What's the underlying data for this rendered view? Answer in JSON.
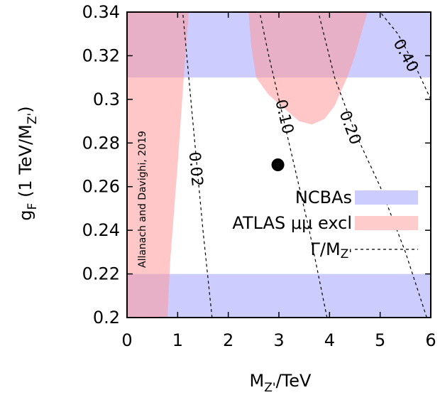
{
  "chart_data": {
    "type": "contour",
    "xlabel": "M",
    "xlabel_sub": "Z'",
    "xlabel_suffix": "/TeV",
    "ylabel": "g",
    "ylabel_sub": "F",
    "ylabel_suffix": " (1 TeV/M",
    "ylabel_sub2": "Z'",
    "ylabel_end": ")",
    "xlim": [
      0,
      6
    ],
    "ylim": [
      0.2,
      0.34
    ],
    "xticks": [
      0,
      1,
      2,
      3,
      4,
      5,
      6
    ],
    "yticks": [
      0.2,
      0.22,
      0.24,
      0.26,
      0.28,
      0.3,
      0.32,
      0.34
    ],
    "ytick_labels": [
      "0.2",
      "0.22",
      "0.24",
      "0.26",
      "0.28",
      "0.3",
      "0.32",
      "0.34"
    ],
    "credit": "Allanach and Davighi, 2019",
    "regions": [
      {
        "name": "NCBAs",
        "color": "#9999ff",
        "opacity": 0.5,
        "polygons": [
          [
            [
              0,
              0.31
            ],
            [
              6,
              0.31
            ],
            [
              6,
              0.34
            ],
            [
              0,
              0.34
            ]
          ],
          [
            [
              0,
              0.2
            ],
            [
              6,
              0.2
            ],
            [
              6,
              0.22
            ],
            [
              0,
              0.22
            ]
          ]
        ]
      },
      {
        "name": "ATLAS μμ excl",
        "color": "#ff9999",
        "opacity": 0.55,
        "polygons": [
          [
            [
              0,
              0.2
            ],
            [
              0.8,
              0.2
            ],
            [
              0.85,
              0.225
            ],
            [
              1.0,
              0.27
            ],
            [
              1.12,
              0.31
            ],
            [
              1.22,
              0.34
            ],
            [
              0,
              0.34
            ]
          ],
          [
            [
              2.4,
              0.34
            ],
            [
              2.45,
              0.325
            ],
            [
              2.55,
              0.31
            ],
            [
              2.8,
              0.302
            ],
            [
              3.1,
              0.296
            ],
            [
              3.4,
              0.29
            ],
            [
              3.65,
              0.2885
            ],
            [
              3.9,
              0.291
            ],
            [
              4.1,
              0.297
            ],
            [
              4.25,
              0.305
            ],
            [
              4.35,
              0.31
            ],
            [
              4.5,
              0.32
            ],
            [
              4.75,
              0.34
            ]
          ]
        ]
      }
    ],
    "contour_series": {
      "name": "Γ/M",
      "name_sub": "Z'",
      "lines": [
        {
          "label": "0.02",
          "label_at": [
            1.35,
            0.268
          ],
          "points": [
            [
              1.68,
              0.2
            ],
            [
              1.5,
              0.24
            ],
            [
              1.38,
              0.27
            ],
            [
              1.3,
              0.29
            ],
            [
              1.22,
              0.31
            ],
            [
              1.18,
              0.32
            ],
            [
              1.1,
              0.34
            ]
          ]
        },
        {
          "label": "0.10",
          "label_at": [
            3.1,
            0.292
          ],
          "points": [
            [
              3.95,
              0.2
            ],
            [
              3.6,
              0.24
            ],
            [
              3.3,
              0.27
            ],
            [
              3.0,
              0.3
            ],
            [
              2.8,
              0.32
            ],
            [
              2.62,
              0.34
            ]
          ]
        },
        {
          "label": "0.20",
          "label_at": [
            4.4,
            0.287
          ],
          "points": [
            [
              5.92,
              0.2
            ],
            [
              5.5,
              0.23
            ],
            [
              5.0,
              0.26
            ],
            [
              4.5,
              0.285
            ],
            [
              4.1,
              0.31
            ],
            [
              3.78,
              0.34
            ]
          ]
        },
        {
          "label": "0.40",
          "label_at": [
            5.5,
            0.32
          ],
          "points": [
            [
              6.0,
              0.3
            ],
            [
              5.7,
              0.315
            ],
            [
              5.35,
              0.33
            ],
            [
              5.0,
              0.34
            ]
          ]
        }
      ]
    },
    "points": [
      {
        "x": 2.98,
        "y": 0.27,
        "marker": "filled-circle"
      }
    ],
    "legend": {
      "placement": "center-right",
      "entries": [
        {
          "label": "NCBAs",
          "kind": "swatch",
          "color": "#ccccff"
        },
        {
          "label": "ATLAS μμ excl",
          "kind": "swatch",
          "color": "#ffcccc"
        },
        {
          "label": "Γ/M",
          "label_sub": "Z'",
          "kind": "dashed-line"
        }
      ]
    }
  }
}
